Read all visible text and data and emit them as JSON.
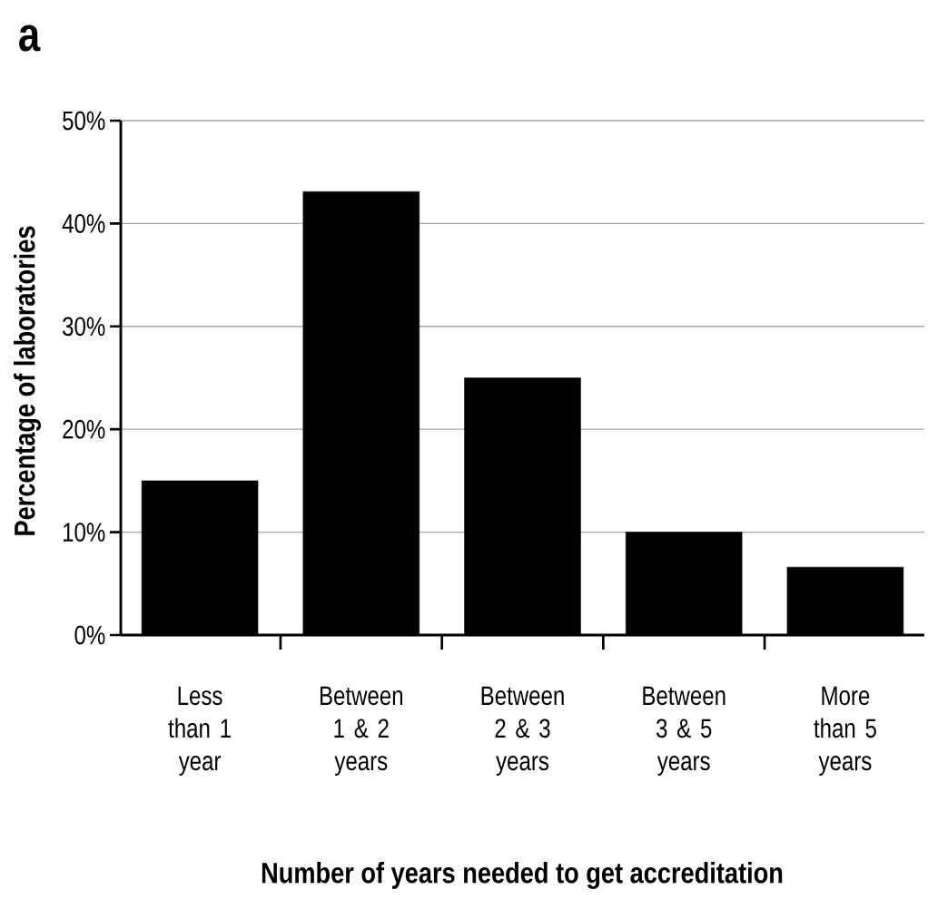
{
  "chart_data": {
    "type": "bar",
    "xlabel": "Number of years needed to get accreditation",
    "ylabel": "Percentage of laboratories",
    "annotations": [
      "a"
    ],
    "categories": [
      "Less than 1 year",
      "Between 1 & 2 years",
      "Between 2 & 3 years",
      "Between 3 & 5 years",
      "More than 5 years"
    ],
    "values": [
      15,
      43.1,
      25,
      10,
      6.6
    ],
    "color": "#000000",
    "ylim": [
      0,
      50
    ],
    "yticks": [
      {
        "value": 0,
        "label": "0%"
      },
      {
        "value": 10,
        "label": "10%"
      },
      {
        "value": 20,
        "label": "20%"
      },
      {
        "value": 30,
        "label": "30%"
      },
      {
        "value": 40,
        "label": "40%"
      },
      {
        "value": 50,
        "label": "50%"
      }
    ],
    "grid": "y"
  }
}
